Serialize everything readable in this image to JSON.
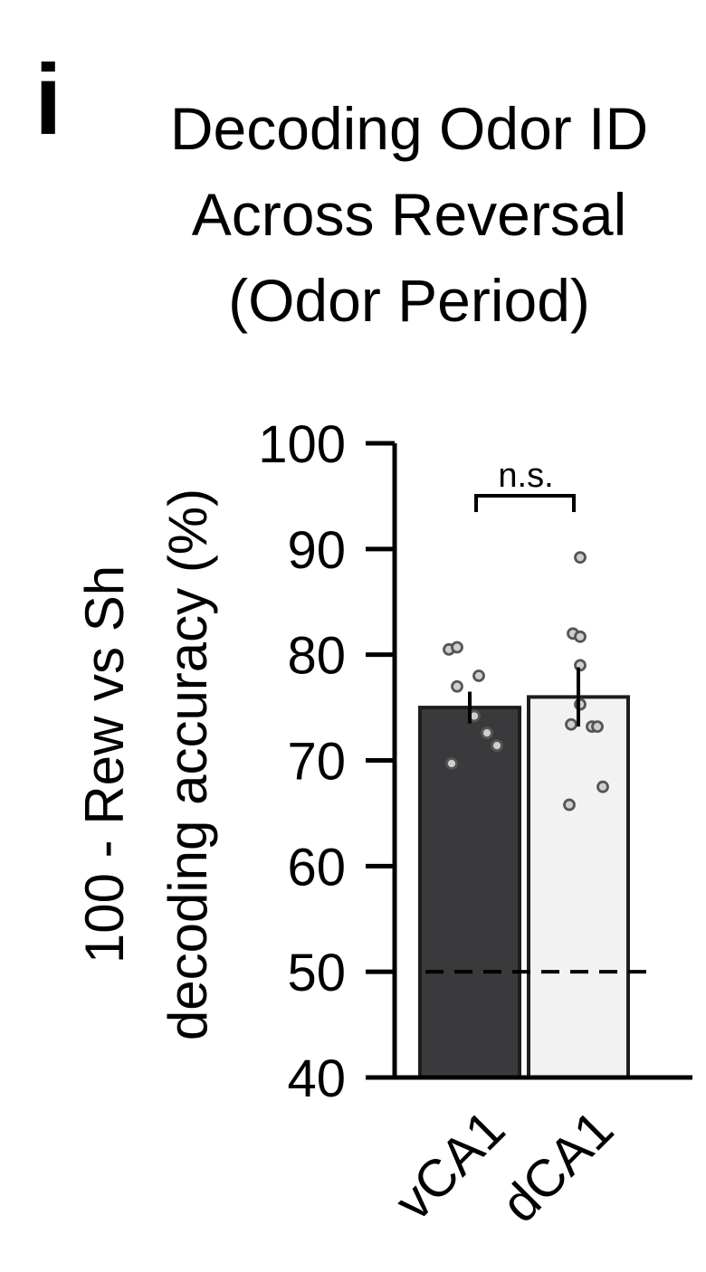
{
  "panel_label": "i",
  "chart_data": {
    "type": "bar",
    "title_lines": [
      "Decoding Odor ID",
      "Across Reversal",
      "(Odor Period)"
    ],
    "ylabel_lines": [
      "100 - Rew vs Sh",
      "decoding accuracy (%)"
    ],
    "categories": [
      "vCA1",
      "dCA1"
    ],
    "values": [
      75.0,
      76.0
    ],
    "errors": [
      1.5,
      2.8
    ],
    "bar_colors": [
      "#3a3a3c",
      "#f2f2f2"
    ],
    "points": [
      [
        80.5,
        80.7,
        77.0,
        78.0,
        74.2,
        72.6,
        71.4,
        69.7
      ],
      [
        89.2,
        82.0,
        81.7,
        79.0,
        75.3,
        73.4,
        73.2,
        73.2,
        67.5,
        65.8
      ]
    ],
    "ylim": [
      40,
      100
    ],
    "yticks": [
      40,
      50,
      60,
      70,
      80,
      90,
      100
    ],
    "chance_line": 50,
    "significance": {
      "label": "n.s.",
      "between": [
        "vCA1",
        "dCA1"
      ]
    },
    "grid": false,
    "legend": "none"
  }
}
